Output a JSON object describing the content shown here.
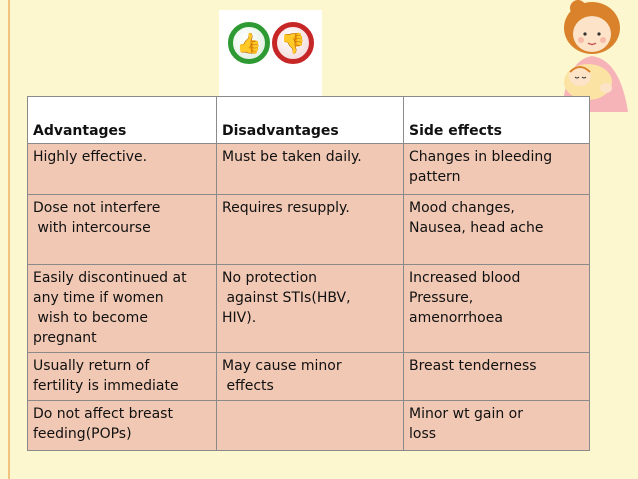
{
  "header": {
    "icons": [
      "thumbs-up-icon",
      "thumbs-down-icon"
    ],
    "illustration": "mother-with-baby-illustration"
  },
  "table": {
    "columns": [
      "Advantages",
      "Disadvantages",
      "Side effects"
    ],
    "rows": [
      [
        "Highly effective.",
        "Must be taken daily.",
        "Changes in bleeding\npattern"
      ],
      [
        "Dose not interfere\n with intercourse",
        "Requires resupply.",
        "Mood changes,\nNausea, head ache"
      ],
      [
        "Easily discontinued at\nany time if women\n wish to become\npregnant",
        "No protection\n against STIs(HBV,\nHIV).",
        "Increased blood\nPressure,\namenorrhoea"
      ],
      [
        "Usually return of\nfertility is immediate",
        "May cause minor\n effects",
        "Breast tenderness"
      ],
      [
        "Do not affect breast\nfeeding(POPs)",
        "",
        "Minor wt gain or\nloss"
      ]
    ]
  },
  "colors": {
    "background": "#fdf7cf",
    "table_fill": "#f1c8b4",
    "header_fill": "#ffffff",
    "thumb_up": "#2e9a33",
    "thumb_down": "#c72626"
  }
}
